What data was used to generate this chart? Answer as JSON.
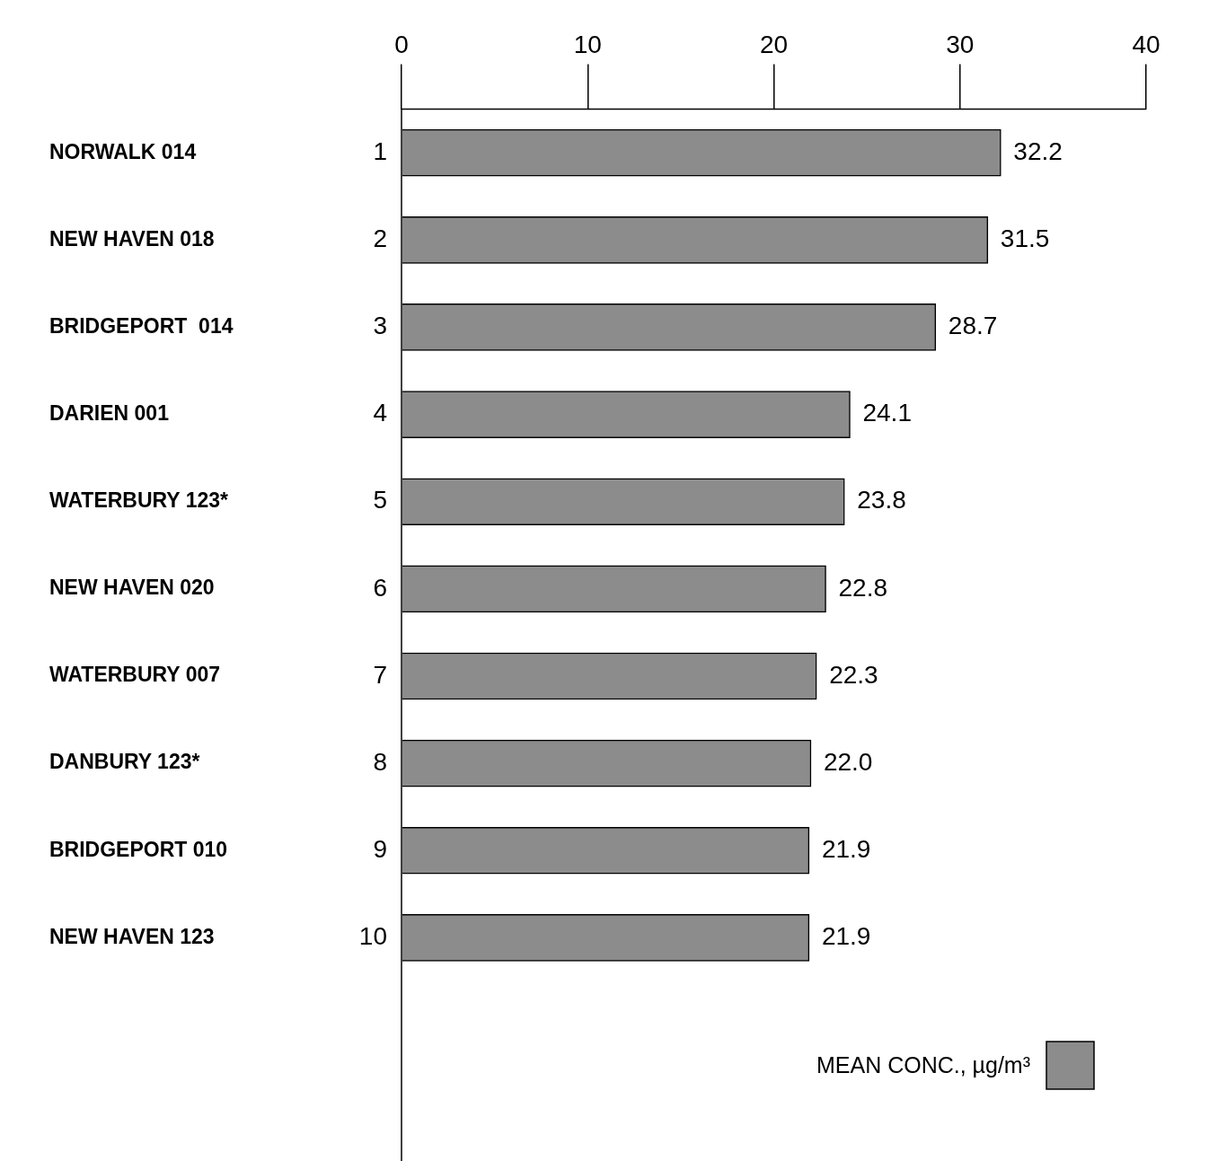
{
  "chart_data": {
    "type": "bar",
    "orientation": "horizontal",
    "categories": [
      "NORWALK 014",
      "NEW HAVEN 018",
      "BRIDGEPORT  014",
      "DARIEN 001",
      "WATERBURY 123*",
      "NEW HAVEN 020",
      "WATERBURY 007",
      "DANBURY 123*",
      "BRIDGEPORT 010",
      "NEW HAVEN 123"
    ],
    "series": [
      {
        "name": "MEAN CONC., µg/m³",
        "color": "#8c8c8c",
        "values": [
          32.2,
          31.5,
          28.7,
          24.1,
          23.8,
          22.8,
          22.3,
          22.0,
          21.9,
          21.9
        ]
      }
    ],
    "value_labels": [
      "32.2",
      "31.5",
      "28.7",
      "24.1",
      "23.8",
      "22.8",
      "22.3",
      "22.0",
      "21.9",
      "21.9"
    ],
    "annotations": [
      "1",
      "2",
      "3",
      "4",
      "5",
      "6",
      "7",
      "8",
      "9",
      "10"
    ],
    "xlim": [
      0,
      40
    ],
    "xticks": [
      0,
      10,
      20,
      30,
      40
    ],
    "grid": false,
    "legend": "bottom right"
  }
}
